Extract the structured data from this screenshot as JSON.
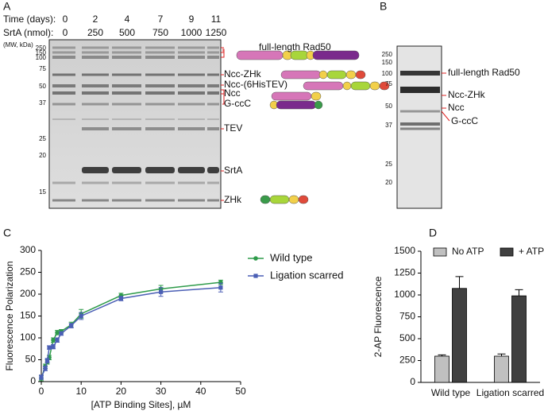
{
  "panel_a": {
    "letter": "A",
    "time_label": "Time (days):",
    "srta_label": "SrtA (nmol):",
    "time": [
      "0",
      "2",
      "4",
      "7",
      "9",
      "11"
    ],
    "srta": [
      "0",
      "250",
      "500",
      "750",
      "1000",
      "1250"
    ],
    "mw_label": "(MW, kDa)",
    "markers": [
      "250",
      "150",
      "100",
      "75",
      "50",
      "37",
      "25",
      "20",
      "15"
    ],
    "bands": [
      "full-length Rad50",
      "Ncc-ZHk",
      "Ncc-(6HisTEV)",
      "Ncc",
      "G-ccC",
      "TEV",
      "SrtA",
      "ZHk"
    ]
  },
  "panel_b": {
    "letter": "B",
    "markers": [
      "250",
      "150",
      "100",
      "75",
      "50",
      "37",
      "25",
      "20"
    ],
    "bands": [
      "full-length Rad50",
      "Ncc-ZHk",
      "Ncc",
      "G-ccC"
    ]
  },
  "chart_data": [
    {
      "type": "line",
      "letter": "C",
      "x_label": "[ATP Binding Sites], µM",
      "y_label": "Fluorescence Polarization",
      "x": [
        0,
        1,
        1.5,
        2,
        3,
        4,
        5,
        7.5,
        10,
        20,
        30,
        45
      ],
      "series": [
        {
          "name": "Wild type",
          "color": "#2e9b4a",
          "values": [
            8,
            35,
            45,
            55,
            95,
            112,
            115,
            130,
            155,
            197,
            212,
            227
          ],
          "errors": [
            6,
            5,
            5,
            5,
            5,
            5,
            4,
            6,
            10,
            5,
            8,
            5
          ]
        },
        {
          "name": "Ligation scarred",
          "color": "#4b5fb5",
          "values": [
            10,
            30,
            48,
            78,
            80,
            95,
            110,
            128,
            150,
            190,
            205,
            215
          ],
          "errors": [
            5,
            5,
            5,
            4,
            5,
            5,
            4,
            5,
            8,
            5,
            10,
            10
          ]
        }
      ],
      "xlim": [
        0,
        50
      ],
      "xticks": [
        0,
        10,
        20,
        30,
        40,
        50
      ],
      "ylim": [
        0,
        300
      ],
      "yticks": [
        0,
        50,
        100,
        150,
        200,
        250,
        300
      ]
    },
    {
      "type": "bar",
      "letter": "D",
      "y_label": "2-AP Fluorescence",
      "categories": [
        "Wild type",
        "Ligation scarred"
      ],
      "series": [
        {
          "name": "No ATP",
          "color": "#c0c0c0",
          "values": [
            300,
            300
          ],
          "errors": [
            15,
            25
          ]
        },
        {
          "name": "+ ATP",
          "color": "#404040",
          "values": [
            1075,
            990
          ],
          "errors": [
            135,
            70
          ]
        }
      ],
      "ylim": [
        0,
        1500
      ],
      "yticks": [
        0,
        250,
        500,
        750,
        1000,
        1250,
        1500
      ]
    }
  ]
}
